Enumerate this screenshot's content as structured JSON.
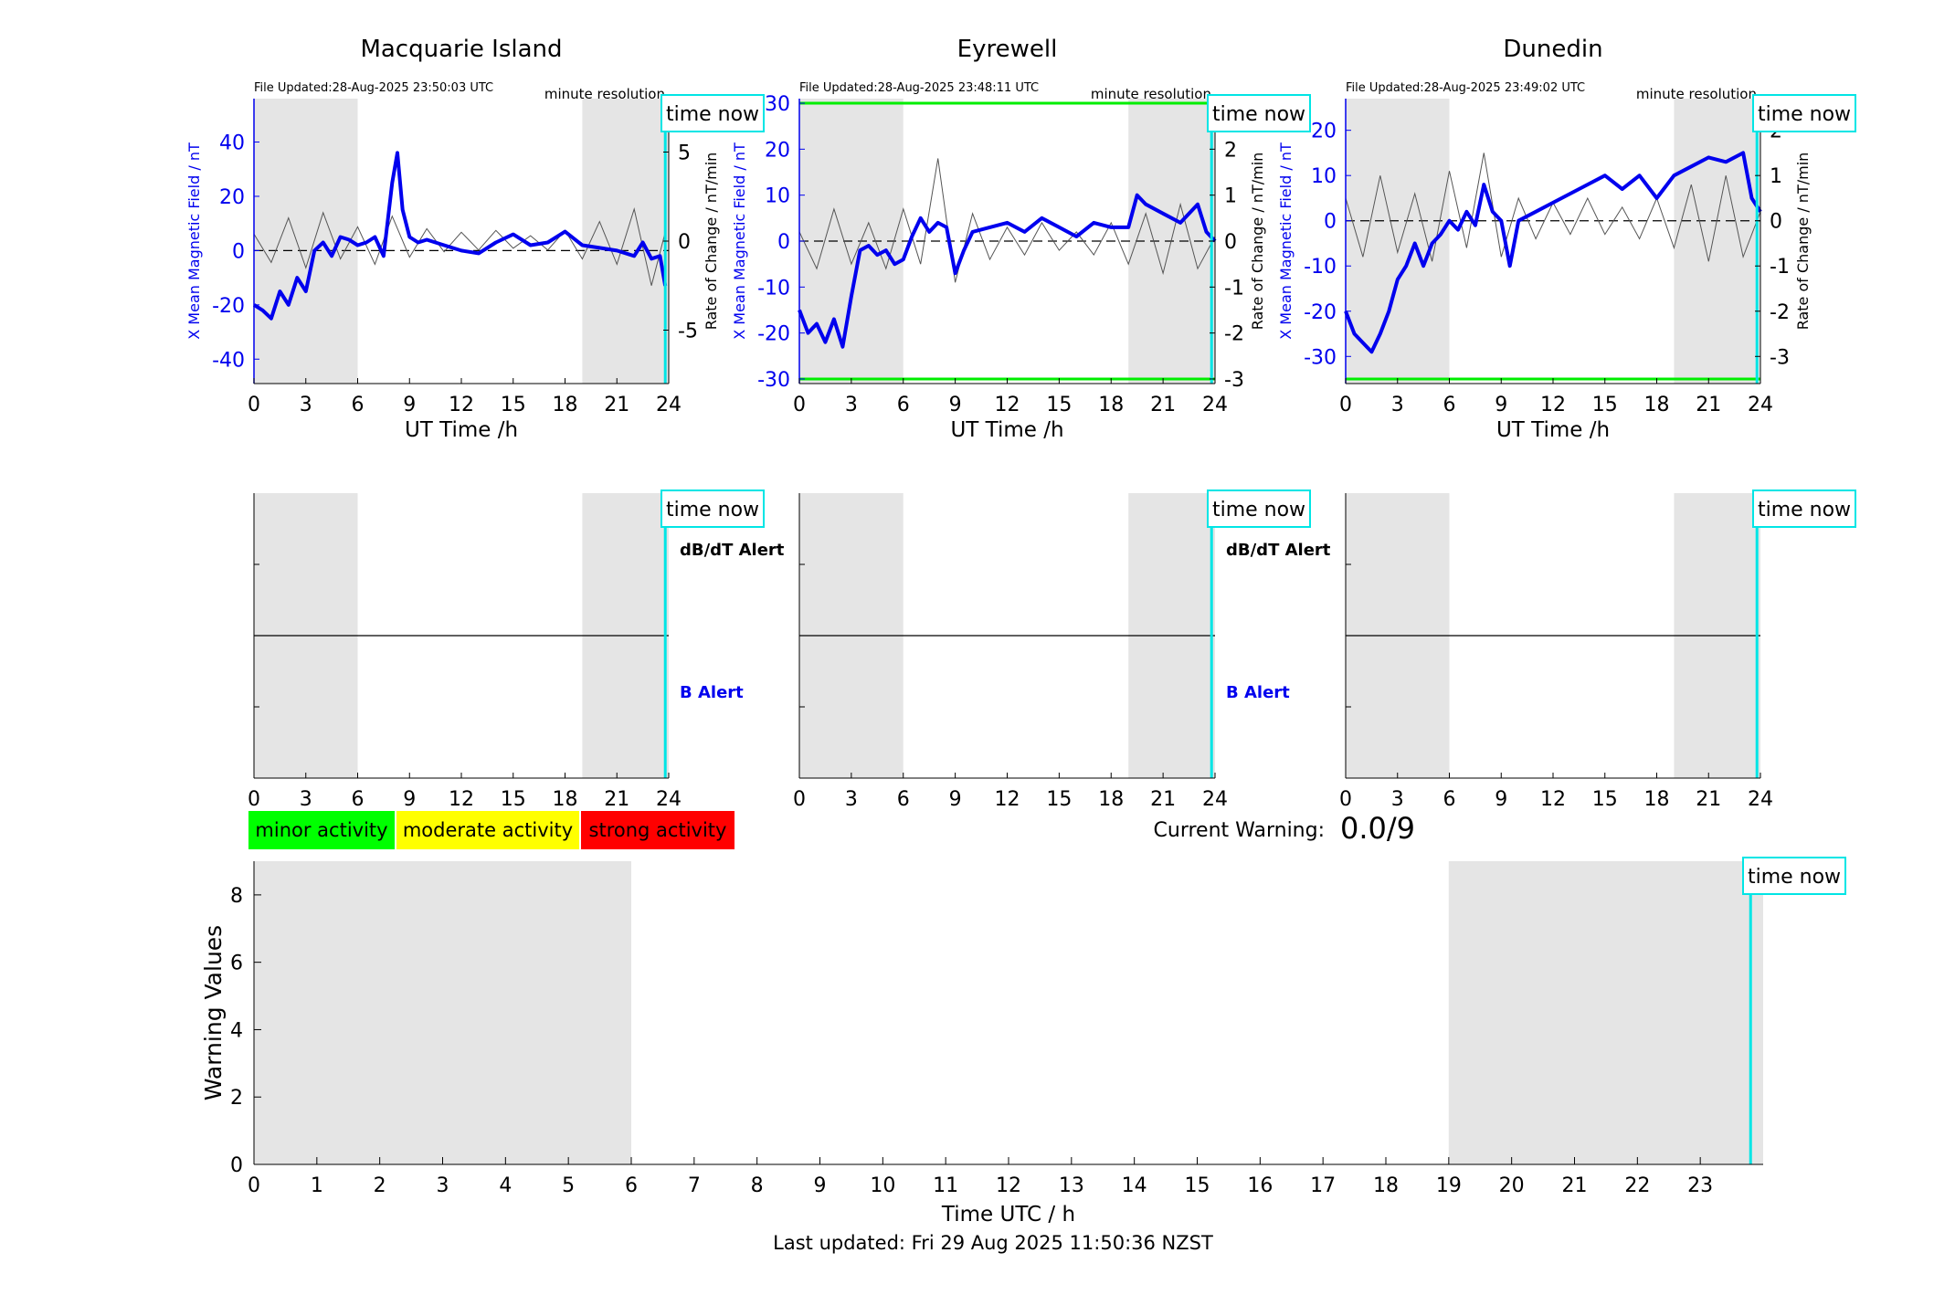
{
  "figure": {
    "footer": "Last updated: Fri 29 Aug 2025 11:50:36 NZST",
    "time_now_label": "time now",
    "time_now_utc": 23.8,
    "night_shading": [
      [
        0,
        6
      ],
      [
        19,
        24
      ]
    ],
    "colors": {
      "field": "#0000ee",
      "rate": "#555555",
      "time_now": "#00e5e5",
      "threshold": "#00ee00",
      "shade": "#e5e5e5"
    }
  },
  "station_panels": [
    {
      "title": "Macquarie Island",
      "file_updated": "File Updated:28-Aug-2025 23:50:03 UTC",
      "resolution": "minute resolution",
      "xlabel": "UT Time /h",
      "ylabel_left": "X Mean Magnetic Field / nT",
      "ylabel_right": "Rate of Change / nT/min",
      "xticks": [
        0,
        3,
        6,
        9,
        12,
        15,
        18,
        21,
        24
      ],
      "yticks_left": [
        -40,
        -20,
        0,
        20,
        40
      ],
      "ylim_left": [
        -49,
        56
      ],
      "yticks_right": [
        -5,
        0,
        5
      ],
      "ylim_right": [
        -8,
        8
      ],
      "threshold_lines": []
    },
    {
      "title": "Eyrewell",
      "file_updated": "File Updated:28-Aug-2025 23:48:11 UTC",
      "resolution": "minute resolution",
      "xlabel": "UT Time /h",
      "ylabel_left": "X Mean Magnetic Field / nT",
      "ylabel_right": "Rate of Change / nT/min",
      "xticks": [
        0,
        3,
        6,
        9,
        12,
        15,
        18,
        21,
        24
      ],
      "yticks_left": [
        -30,
        -20,
        -10,
        0,
        10,
        20,
        30
      ],
      "ylim_left": [
        -31,
        31
      ],
      "yticks_right": [
        -3,
        -2,
        -1,
        0,
        1,
        2,
        3
      ],
      "ylim_right": [
        -3.1,
        3.1
      ],
      "threshold_lines": [
        30,
        -30
      ]
    },
    {
      "title": "Dunedin",
      "file_updated": "File Updated:28-Aug-2025 23:49:02 UTC",
      "resolution": "minute resolution",
      "xlabel": "UT Time /h",
      "ylabel_left": "X Mean Magnetic Field / nT",
      "ylabel_right": "Rate of Change / nT/min",
      "xticks": [
        0,
        3,
        6,
        9,
        12,
        15,
        18,
        21,
        24
      ],
      "yticks_left": [
        -30,
        -20,
        -10,
        0,
        10,
        20
      ],
      "ylim_left": [
        -36,
        27
      ],
      "yticks_right": [
        -3,
        -2,
        -1,
        0,
        1,
        2
      ],
      "ylim_right": [
        -3.6,
        2.7
      ],
      "threshold_lines": [
        -35
      ]
    }
  ],
  "alert_panels": [
    {
      "dbdt_label": "dB/dT Alert",
      "b_label": "B Alert",
      "xticks": [
        0,
        3,
        6,
        9,
        12,
        15,
        18,
        21,
        24
      ]
    },
    {
      "dbdt_label": "dB/dT Alert",
      "b_label": "B Alert",
      "xticks": [
        0,
        3,
        6,
        9,
        12,
        15,
        18,
        21,
        24
      ]
    },
    {
      "dbdt_label": "",
      "b_label": "",
      "xticks": [
        0,
        3,
        6,
        9,
        12,
        15,
        18,
        21,
        24
      ]
    }
  ],
  "legend": [
    {
      "label": "minor activity",
      "color": "#00ff00"
    },
    {
      "label": "moderate activity",
      "color": "#ffff00"
    },
    {
      "label": "strong activity",
      "color": "#ff0000"
    }
  ],
  "current_warning": {
    "label": "Current Warning:",
    "value": "0.0/9"
  },
  "chart_data": [
    {
      "type": "line",
      "title": "Macquarie Island",
      "xlabel": "UT Time /h",
      "ylabel": "X Mean Magnetic Field / nT",
      "xlim": [
        0,
        24
      ],
      "series": [
        {
          "axis": "left",
          "x": [
            0,
            0.5,
            1,
            1.5,
            2,
            2.5,
            3,
            3.5,
            4,
            4.5,
            5,
            5.5,
            6,
            6.5,
            7,
            7.5,
            8,
            8.3,
            8.6,
            9,
            9.5,
            10,
            11,
            12,
            13,
            14,
            15,
            16,
            17,
            18,
            19,
            20,
            21,
            22,
            22.5,
            23,
            23.5,
            23.8
          ],
          "values": [
            -20,
            -22,
            -25,
            -15,
            -20,
            -10,
            -15,
            0,
            3,
            -2,
            5,
            4,
            2,
            3,
            5,
            -2,
            25,
            36,
            15,
            5,
            3,
            4,
            2,
            0,
            -1,
            3,
            6,
            2,
            3,
            7,
            2,
            1,
            0,
            -2,
            3,
            -3,
            -2,
            -13
          ]
        },
        {
          "axis": "right",
          "x": [
            0,
            1,
            2,
            3,
            4,
            5,
            6,
            7,
            8,
            9,
            10,
            11,
            12,
            13,
            14,
            15,
            16,
            17,
            18,
            19,
            20,
            21,
            22,
            23,
            23.8
          ],
          "values": [
            0.4,
            -1.2,
            1.3,
            -1.5,
            1.6,
            -1.0,
            0.8,
            -1.3,
            1.4,
            -0.9,
            0.7,
            -0.6,
            0.5,
            -0.5,
            0.6,
            -0.4,
            0.3,
            -0.5,
            0.6,
            -1.0,
            1.1,
            -1.3,
            1.8,
            -2.5,
            0.5
          ]
        }
      ]
    },
    {
      "type": "line",
      "title": "Eyrewell",
      "xlabel": "UT Time /h",
      "ylabel": "X Mean Magnetic Field / nT",
      "xlim": [
        0,
        24
      ],
      "series": [
        {
          "axis": "left",
          "x": [
            0,
            0.5,
            1,
            1.5,
            2,
            2.5,
            3,
            3.5,
            4,
            4.5,
            5,
            5.5,
            6,
            6.5,
            7,
            7.5,
            8,
            8.5,
            9,
            9.5,
            10,
            11,
            12,
            13,
            14,
            15,
            16,
            17,
            18,
            19,
            19.5,
            20,
            21,
            22,
            23,
            23.5,
            24
          ],
          "values": [
            -15,
            -20,
            -18,
            -22,
            -17,
            -23,
            -12,
            -2,
            -1,
            -3,
            -2,
            -5,
            -4,
            1,
            5,
            2,
            4,
            3,
            -7,
            -2,
            2,
            3,
            4,
            2,
            5,
            3,
            1,
            4,
            3,
            3,
            10,
            8,
            6,
            4,
            8,
            2,
            0
          ]
        },
        {
          "axis": "right",
          "x": [
            0,
            1,
            2,
            3,
            4,
            5,
            6,
            7,
            8,
            9,
            10,
            11,
            12,
            13,
            14,
            15,
            16,
            17,
            18,
            19,
            20,
            21,
            22,
            23,
            24
          ],
          "values": [
            0.2,
            -0.6,
            0.7,
            -0.5,
            0.4,
            -0.6,
            0.7,
            -0.5,
            1.8,
            -0.9,
            0.6,
            -0.4,
            0.3,
            -0.3,
            0.4,
            -0.2,
            0.2,
            -0.3,
            0.4,
            -0.5,
            0.6,
            -0.7,
            0.8,
            -0.6,
            0.1
          ]
        }
      ]
    },
    {
      "type": "line",
      "title": "Dunedin",
      "xlabel": "UT Time /h",
      "ylabel": "X Mean Magnetic Field / nT",
      "xlim": [
        0,
        24
      ],
      "series": [
        {
          "axis": "left",
          "x": [
            0,
            0.5,
            1,
            1.5,
            2,
            2.5,
            3,
            3.5,
            4,
            4.5,
            5,
            5.5,
            6,
            6.5,
            7,
            7.5,
            8,
            8.5,
            9,
            9.5,
            10,
            11,
            12,
            13,
            14,
            15,
            16,
            17,
            18,
            19,
            20,
            21,
            22,
            23,
            23.5,
            24
          ],
          "values": [
            -20,
            -25,
            -27,
            -29,
            -25,
            -20,
            -13,
            -10,
            -5,
            -10,
            -5,
            -3,
            0,
            -2,
            2,
            -1,
            8,
            2,
            0,
            -10,
            0,
            2,
            4,
            6,
            8,
            10,
            7,
            10,
            5,
            10,
            12,
            14,
            13,
            15,
            5,
            2
          ]
        },
        {
          "axis": "right",
          "x": [
            0,
            1,
            2,
            3,
            4,
            5,
            6,
            7,
            8,
            9,
            10,
            11,
            12,
            13,
            14,
            15,
            16,
            17,
            18,
            19,
            20,
            21,
            22,
            23,
            24
          ],
          "values": [
            0.5,
            -0.8,
            1.0,
            -0.7,
            0.6,
            -0.9,
            1.1,
            -0.6,
            1.5,
            -0.8,
            0.5,
            -0.4,
            0.4,
            -0.3,
            0.5,
            -0.3,
            0.3,
            -0.4,
            0.5,
            -0.6,
            0.8,
            -0.9,
            1.0,
            -0.8,
            0.2
          ]
        }
      ]
    },
    {
      "type": "line",
      "title": "",
      "xlabel": "Time UTC / h",
      "ylabel": "Warning Values",
      "xlim": [
        0,
        24
      ],
      "ylim": [
        0,
        9
      ],
      "xticks": [
        0,
        1,
        2,
        3,
        4,
        5,
        6,
        7,
        8,
        9,
        10,
        11,
        12,
        13,
        14,
        15,
        16,
        17,
        18,
        19,
        20,
        21,
        22,
        23
      ],
      "yticks": [
        0,
        2,
        4,
        6,
        8
      ],
      "series": [
        {
          "values": []
        }
      ]
    }
  ]
}
